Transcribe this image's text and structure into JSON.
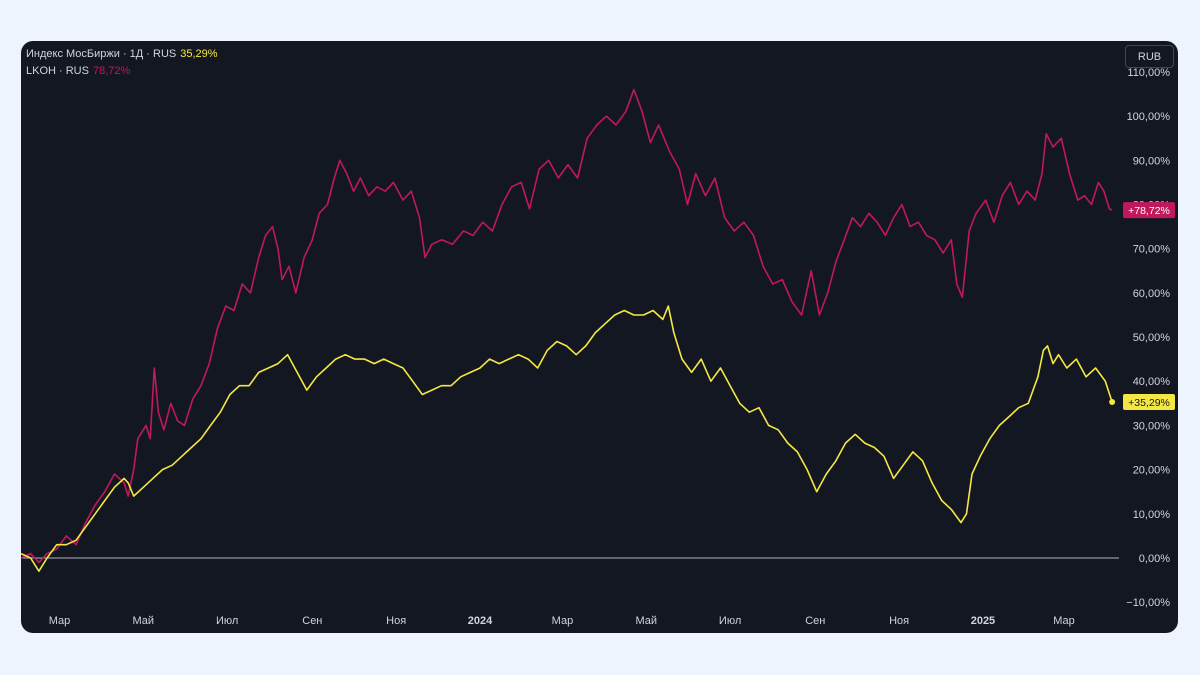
{
  "legend": {
    "index": {
      "label": "Индекс МосБиржи · 1Д · RUS",
      "value": "35,29%"
    },
    "lkoh": {
      "label": "LKOH · RUS",
      "value": "78,72%"
    }
  },
  "currency": "RUB",
  "colors": {
    "index": "#f5e742",
    "lkoh": "#c2185b",
    "background": "#131722",
    "text": "#d1d4dc",
    "zero_line": "#b2b5be"
  },
  "chart_data": {
    "type": "line",
    "x_ticks": [
      {
        "label": "Мар",
        "date": "2023-03-01",
        "bold": false
      },
      {
        "label": "Май",
        "date": "2023-05-01",
        "bold": false
      },
      {
        "label": "Июл",
        "date": "2023-07-01",
        "bold": false
      },
      {
        "label": "Сен",
        "date": "2023-09-01",
        "bold": false
      },
      {
        "label": "Ноя",
        "date": "2023-11-01",
        "bold": false
      },
      {
        "label": "2024",
        "date": "2024-01-01",
        "bold": true
      },
      {
        "label": "Мар",
        "date": "2024-03-01",
        "bold": false
      },
      {
        "label": "Май",
        "date": "2024-05-01",
        "bold": false
      },
      {
        "label": "Июл",
        "date": "2024-07-01",
        "bold": false
      },
      {
        "label": "Сен",
        "date": "2024-09-01",
        "bold": false
      },
      {
        "label": "Ноя",
        "date": "2024-11-01",
        "bold": false
      },
      {
        "label": "2025",
        "date": "2025-01-01",
        "bold": true
      },
      {
        "label": "Мар",
        "date": "2025-03-01",
        "bold": false
      }
    ],
    "y_ticks": [
      {
        "value": 110,
        "label": "110,00%"
      },
      {
        "value": 100,
        "label": "100,00%"
      },
      {
        "value": 90,
        "label": "90,00%"
      },
      {
        "value": 80,
        "label": "80,00%"
      },
      {
        "value": 70,
        "label": "70,00%"
      },
      {
        "value": 60,
        "label": "60,00%"
      },
      {
        "value": 50,
        "label": "50,00%"
      },
      {
        "value": 40,
        "label": "40,00%"
      },
      {
        "value": 30,
        "label": "30,00%"
      },
      {
        "value": 20,
        "label": "20,00%"
      },
      {
        "value": 10,
        "label": "10,00%"
      },
      {
        "value": 0,
        "label": "0,00%"
      },
      {
        "value": -10,
        "label": "−10,00%"
      }
    ],
    "ylim": [
      -12,
      117
    ],
    "xlim": [
      "2023-02-01",
      "2025-04-10"
    ],
    "series": [
      {
        "key": "lkoh",
        "last_label": "+78,72%",
        "last_value": 78.72,
        "points": [
          [
            "2023-02-01",
            0
          ],
          [
            "2023-02-08",
            1
          ],
          [
            "2023-02-14",
            -1
          ],
          [
            "2023-02-20",
            1
          ],
          [
            "2023-02-27",
            2
          ],
          [
            "2023-03-06",
            5
          ],
          [
            "2023-03-13",
            3
          ],
          [
            "2023-03-20",
            8
          ],
          [
            "2023-03-27",
            12
          ],
          [
            "2023-04-03",
            15
          ],
          [
            "2023-04-10",
            19
          ],
          [
            "2023-04-17",
            17
          ],
          [
            "2023-04-20",
            14
          ],
          [
            "2023-04-24",
            20
          ],
          [
            "2023-04-27",
            27
          ],
          [
            "2023-05-03",
            30
          ],
          [
            "2023-05-06",
            27
          ],
          [
            "2023-05-09",
            43
          ],
          [
            "2023-05-12",
            33
          ],
          [
            "2023-05-16",
            29
          ],
          [
            "2023-05-21",
            35
          ],
          [
            "2023-05-26",
            31
          ],
          [
            "2023-05-31",
            30
          ],
          [
            "2023-06-06",
            36
          ],
          [
            "2023-06-12",
            39
          ],
          [
            "2023-06-18",
            44
          ],
          [
            "2023-06-24",
            52
          ],
          [
            "2023-06-30",
            57
          ],
          [
            "2023-07-06",
            56
          ],
          [
            "2023-07-12",
            62
          ],
          [
            "2023-07-18",
            60
          ],
          [
            "2023-07-24",
            68
          ],
          [
            "2023-07-29",
            73
          ],
          [
            "2023-08-03",
            75
          ],
          [
            "2023-08-07",
            70
          ],
          [
            "2023-08-10",
            63
          ],
          [
            "2023-08-15",
            66
          ],
          [
            "2023-08-20",
            60
          ],
          [
            "2023-08-26",
            68
          ],
          [
            "2023-09-01",
            72
          ],
          [
            "2023-09-06",
            78
          ],
          [
            "2023-09-12",
            80
          ],
          [
            "2023-09-17",
            86
          ],
          [
            "2023-09-21",
            90
          ],
          [
            "2023-09-26",
            87
          ],
          [
            "2023-10-01",
            83
          ],
          [
            "2023-10-06",
            86
          ],
          [
            "2023-10-12",
            82
          ],
          [
            "2023-10-18",
            84
          ],
          [
            "2023-10-24",
            83
          ],
          [
            "2023-10-30",
            85
          ],
          [
            "2023-11-06",
            81
          ],
          [
            "2023-11-12",
            83
          ],
          [
            "2023-11-18",
            77
          ],
          [
            "2023-11-22",
            68
          ],
          [
            "2023-11-27",
            71
          ],
          [
            "2023-12-04",
            72
          ],
          [
            "2023-12-12",
            71
          ],
          [
            "2023-12-20",
            74
          ],
          [
            "2023-12-27",
            73
          ],
          [
            "2024-01-03",
            76
          ],
          [
            "2024-01-10",
            74
          ],
          [
            "2024-01-17",
            80
          ],
          [
            "2024-01-24",
            84
          ],
          [
            "2024-01-31",
            85
          ],
          [
            "2024-02-06",
            79
          ],
          [
            "2024-02-13",
            88
          ],
          [
            "2024-02-20",
            90
          ],
          [
            "2024-02-27",
            86
          ],
          [
            "2024-03-05",
            89
          ],
          [
            "2024-03-12",
            86
          ],
          [
            "2024-03-19",
            95
          ],
          [
            "2024-03-26",
            98
          ],
          [
            "2024-04-02",
            100
          ],
          [
            "2024-04-09",
            98
          ],
          [
            "2024-04-16",
            101
          ],
          [
            "2024-04-22",
            106
          ],
          [
            "2024-04-28",
            101
          ],
          [
            "2024-05-04",
            94
          ],
          [
            "2024-05-10",
            98
          ],
          [
            "2024-05-18",
            92
          ],
          [
            "2024-05-25",
            88
          ],
          [
            "2024-05-31",
            80
          ],
          [
            "2024-06-06",
            87
          ],
          [
            "2024-06-13",
            82
          ],
          [
            "2024-06-20",
            86
          ],
          [
            "2024-06-27",
            77
          ],
          [
            "2024-07-04",
            74
          ],
          [
            "2024-07-11",
            76
          ],
          [
            "2024-07-18",
            73
          ],
          [
            "2024-07-25",
            66
          ],
          [
            "2024-08-01",
            62
          ],
          [
            "2024-08-08",
            63
          ],
          [
            "2024-08-15",
            58
          ],
          [
            "2024-08-22",
            55
          ],
          [
            "2024-08-29",
            65
          ],
          [
            "2024-09-04",
            55
          ],
          [
            "2024-09-10",
            60
          ],
          [
            "2024-09-16",
            67
          ],
          [
            "2024-09-22",
            72
          ],
          [
            "2024-09-28",
            77
          ],
          [
            "2024-10-04",
            75
          ],
          [
            "2024-10-10",
            78
          ],
          [
            "2024-10-16",
            76
          ],
          [
            "2024-10-22",
            73
          ],
          [
            "2024-10-28",
            77
          ],
          [
            "2024-11-03",
            80
          ],
          [
            "2024-11-09",
            75
          ],
          [
            "2024-11-15",
            76
          ],
          [
            "2024-11-21",
            73
          ],
          [
            "2024-11-27",
            72
          ],
          [
            "2024-12-03",
            69
          ],
          [
            "2024-12-09",
            72
          ],
          [
            "2024-12-13",
            62
          ],
          [
            "2024-12-17",
            59
          ],
          [
            "2024-12-22",
            74
          ],
          [
            "2024-12-27",
            78
          ],
          [
            "2025-01-03",
            81
          ],
          [
            "2025-01-09",
            76
          ],
          [
            "2025-01-15",
            82
          ],
          [
            "2025-01-21",
            85
          ],
          [
            "2025-01-27",
            80
          ],
          [
            "2025-02-02",
            83
          ],
          [
            "2025-02-08",
            81
          ],
          [
            "2025-02-13",
            87
          ],
          [
            "2025-02-16",
            96
          ],
          [
            "2025-02-21",
            93
          ],
          [
            "2025-02-27",
            95
          ],
          [
            "2025-03-05",
            87
          ],
          [
            "2025-03-11",
            81
          ],
          [
            "2025-03-16",
            82
          ],
          [
            "2025-03-21",
            80
          ],
          [
            "2025-03-26",
            85
          ],
          [
            "2025-03-30",
            83
          ],
          [
            "2025-04-03",
            79
          ],
          [
            "2025-04-05",
            78.72
          ]
        ]
      },
      {
        "key": "index",
        "last_label": "+35,29%",
        "last_value": 35.29,
        "points": [
          [
            "2023-02-01",
            1
          ],
          [
            "2023-02-08",
            0
          ],
          [
            "2023-02-14",
            -3
          ],
          [
            "2023-02-20",
            0
          ],
          [
            "2023-02-27",
            3
          ],
          [
            "2023-03-06",
            3
          ],
          [
            "2023-03-13",
            4
          ],
          [
            "2023-03-20",
            7
          ],
          [
            "2023-03-27",
            10
          ],
          [
            "2023-04-03",
            13
          ],
          [
            "2023-04-10",
            16
          ],
          [
            "2023-04-17",
            18
          ],
          [
            "2023-04-20",
            17
          ],
          [
            "2023-04-24",
            14
          ],
          [
            "2023-05-01",
            16
          ],
          [
            "2023-05-08",
            18
          ],
          [
            "2023-05-15",
            20
          ],
          [
            "2023-05-22",
            21
          ],
          [
            "2023-05-29",
            23
          ],
          [
            "2023-06-05",
            25
          ],
          [
            "2023-06-12",
            27
          ],
          [
            "2023-06-19",
            30
          ],
          [
            "2023-06-26",
            33
          ],
          [
            "2023-07-03",
            37
          ],
          [
            "2023-07-10",
            39
          ],
          [
            "2023-07-17",
            39
          ],
          [
            "2023-07-24",
            42
          ],
          [
            "2023-07-31",
            43
          ],
          [
            "2023-08-07",
            44
          ],
          [
            "2023-08-14",
            46
          ],
          [
            "2023-08-21",
            42
          ],
          [
            "2023-08-28",
            38
          ],
          [
            "2023-09-04",
            41
          ],
          [
            "2023-09-11",
            43
          ],
          [
            "2023-09-18",
            45
          ],
          [
            "2023-09-25",
            46
          ],
          [
            "2023-10-02",
            45
          ],
          [
            "2023-10-09",
            45
          ],
          [
            "2023-10-16",
            44
          ],
          [
            "2023-10-23",
            45
          ],
          [
            "2023-10-30",
            44
          ],
          [
            "2023-11-06",
            43
          ],
          [
            "2023-11-13",
            40
          ],
          [
            "2023-11-20",
            37
          ],
          [
            "2023-11-27",
            38
          ],
          [
            "2023-12-04",
            39
          ],
          [
            "2023-12-11",
            39
          ],
          [
            "2023-12-18",
            41
          ],
          [
            "2023-12-25",
            42
          ],
          [
            "2024-01-01",
            43
          ],
          [
            "2024-01-08",
            45
          ],
          [
            "2024-01-15",
            44
          ],
          [
            "2024-01-22",
            45
          ],
          [
            "2024-01-29",
            46
          ],
          [
            "2024-02-05",
            45
          ],
          [
            "2024-02-12",
            43
          ],
          [
            "2024-02-19",
            47
          ],
          [
            "2024-02-26",
            49
          ],
          [
            "2024-03-04",
            48
          ],
          [
            "2024-03-11",
            46
          ],
          [
            "2024-03-18",
            48
          ],
          [
            "2024-03-25",
            51
          ],
          [
            "2024-04-01",
            53
          ],
          [
            "2024-04-08",
            55
          ],
          [
            "2024-04-15",
            56
          ],
          [
            "2024-04-22",
            55
          ],
          [
            "2024-04-29",
            55
          ],
          [
            "2024-05-06",
            56
          ],
          [
            "2024-05-13",
            54
          ],
          [
            "2024-05-17",
            57
          ],
          [
            "2024-05-21",
            51
          ],
          [
            "2024-05-27",
            45
          ],
          [
            "2024-06-03",
            42
          ],
          [
            "2024-06-10",
            45
          ],
          [
            "2024-06-17",
            40
          ],
          [
            "2024-06-24",
            43
          ],
          [
            "2024-07-01",
            39
          ],
          [
            "2024-07-08",
            35
          ],
          [
            "2024-07-15",
            33
          ],
          [
            "2024-07-22",
            34
          ],
          [
            "2024-07-29",
            30
          ],
          [
            "2024-08-05",
            29
          ],
          [
            "2024-08-12",
            26
          ],
          [
            "2024-08-19",
            24
          ],
          [
            "2024-08-26",
            20
          ],
          [
            "2024-09-02",
            15
          ],
          [
            "2024-09-09",
            19
          ],
          [
            "2024-09-16",
            22
          ],
          [
            "2024-09-23",
            26
          ],
          [
            "2024-09-30",
            28
          ],
          [
            "2024-10-07",
            26
          ],
          [
            "2024-10-14",
            25
          ],
          [
            "2024-10-21",
            23
          ],
          [
            "2024-10-28",
            18
          ],
          [
            "2024-11-04",
            21
          ],
          [
            "2024-11-11",
            24
          ],
          [
            "2024-11-18",
            22
          ],
          [
            "2024-11-25",
            17
          ],
          [
            "2024-12-02",
            13
          ],
          [
            "2024-12-09",
            11
          ],
          [
            "2024-12-16",
            8
          ],
          [
            "2024-12-20",
            10
          ],
          [
            "2024-12-24",
            19
          ],
          [
            "2024-12-30",
            23
          ],
          [
            "2025-01-06",
            27
          ],
          [
            "2025-01-13",
            30
          ],
          [
            "2025-01-20",
            32
          ],
          [
            "2025-01-27",
            34
          ],
          [
            "2025-02-03",
            35
          ],
          [
            "2025-02-10",
            41
          ],
          [
            "2025-02-14",
            47
          ],
          [
            "2025-02-17",
            48
          ],
          [
            "2025-02-21",
            44
          ],
          [
            "2025-02-25",
            46
          ],
          [
            "2025-03-03",
            43
          ],
          [
            "2025-03-10",
            45
          ],
          [
            "2025-03-17",
            41
          ],
          [
            "2025-03-24",
            43
          ],
          [
            "2025-03-31",
            40
          ],
          [
            "2025-04-05",
            35.29
          ]
        ]
      }
    ]
  }
}
